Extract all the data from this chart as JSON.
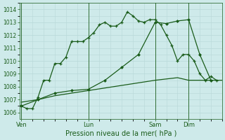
{
  "xlabel": "Pression niveau de la mer( hPa )",
  "background_color": "#ceeaea",
  "grid_color": "#b8d8d8",
  "line_color": "#1a5c1a",
  "ylim": [
    1005.5,
    1014.5
  ],
  "yticks": [
    1006,
    1007,
    1008,
    1009,
    1010,
    1011,
    1012,
    1013,
    1014
  ],
  "xtick_labels": [
    "Ven",
    "Lun",
    "Sam",
    "Dim"
  ],
  "xtick_positions": [
    0,
    36,
    72,
    90
  ],
  "xlim": [
    -1,
    108
  ],
  "series1_x": [
    0,
    3,
    6,
    9,
    12,
    15,
    18,
    21,
    24,
    27,
    30,
    33,
    36,
    39,
    42,
    45,
    48,
    51,
    54,
    57,
    60,
    63,
    66,
    69,
    72,
    75,
    78,
    81,
    84,
    87,
    90,
    93,
    96,
    99,
    102,
    105
  ],
  "series1_y": [
    1006.5,
    1006.3,
    1006.3,
    1007.2,
    1008.5,
    1008.5,
    1009.8,
    1009.8,
    1010.3,
    1011.5,
    1011.5,
    1011.5,
    1011.8,
    1012.2,
    1012.8,
    1013.0,
    1012.7,
    1012.7,
    1013.0,
    1013.8,
    1013.5,
    1013.1,
    1013.0,
    1013.2,
    1013.2,
    1012.8,
    1012.0,
    1011.2,
    1010.0,
    1010.5,
    1010.5,
    1010.0,
    1009.0,
    1008.5,
    1008.8,
    1008.5
  ],
  "series2_x": [
    0,
    9,
    18,
    27,
    36,
    45,
    54,
    63,
    72,
    78,
    84,
    90,
    96,
    102
  ],
  "series2_y": [
    1006.5,
    1007.0,
    1007.5,
    1007.7,
    1007.8,
    1008.5,
    1009.5,
    1010.5,
    1013.0,
    1012.9,
    1013.1,
    1013.2,
    1010.5,
    1008.5
  ],
  "series3_x": [
    0,
    9,
    18,
    27,
    36,
    45,
    54,
    63,
    72,
    78,
    84,
    90,
    96,
    102,
    108
  ],
  "series3_y": [
    1006.8,
    1007.0,
    1007.3,
    1007.5,
    1007.7,
    1007.9,
    1008.1,
    1008.3,
    1008.5,
    1008.6,
    1008.7,
    1008.5,
    1008.5,
    1008.5,
    1008.5
  ],
  "marker_color": "#1a5c1a",
  "xlabel_fontsize": 7,
  "ytick_fontsize": 5.5,
  "xtick_fontsize": 6
}
